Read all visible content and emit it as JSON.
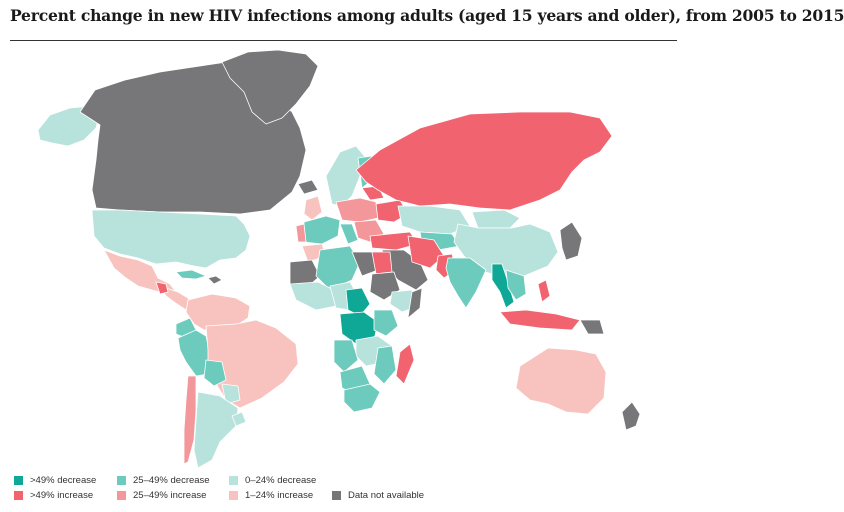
{
  "title": "Percent change in new HIV infections among adults (aged 15 years and older), from 2005 to 2015",
  "colors": {
    "dec_gt49": "#0fa896",
    "dec_25_49": "#6ccbbc",
    "dec_0_24": "#b8e2dc",
    "inc_gt49": "#f0636f",
    "inc_25_49": "#f4979b",
    "inc_1_24": "#f8c3bf",
    "na": "#777779",
    "border": "#ffffff"
  },
  "legend": [
    {
      "label": ">49% decrease",
      "color": "#0fa896"
    },
    {
      "label": "25–49% decrease",
      "color": "#6ccbbc"
    },
    {
      "label": "0–24% decrease",
      "color": "#b8e2dc"
    },
    {
      "label": ">49% increase",
      "color": "#f0636f"
    },
    {
      "label": "25–49% increase",
      "color": "#f4979b"
    },
    {
      "label": "1–24% increase",
      "color": "#f8c3bf"
    },
    {
      "label": "Data not available",
      "color": "#777779"
    }
  ]
}
